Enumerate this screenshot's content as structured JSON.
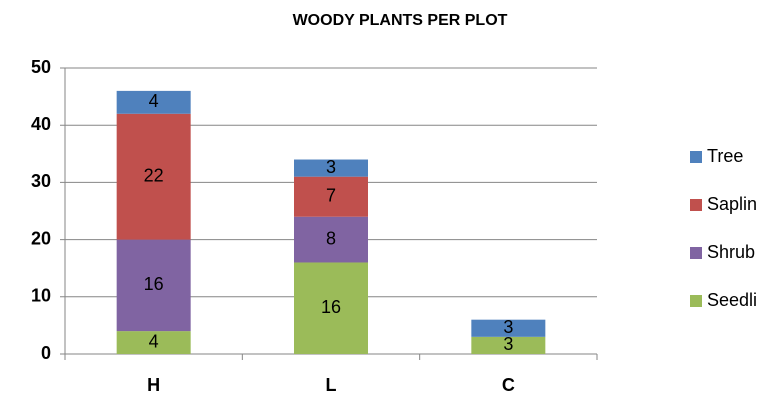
{
  "chart_data": {
    "type": "stacked_bar",
    "title": "WOODY PLANTS PER PLOT",
    "categories": [
      "H",
      "L",
      "C"
    ],
    "series": [
      {
        "name": "Seedling",
        "color": "#9bbb59",
        "values": [
          4,
          16,
          3
        ]
      },
      {
        "name": "Shrub",
        "color": "#8064a2",
        "values": [
          16,
          8,
          null
        ]
      },
      {
        "name": "Sapling",
        "color": "#c0504d",
        "values": [
          22,
          7,
          null
        ]
      },
      {
        "name": "Tree",
        "color": "#4f81bd",
        "values": [
          4,
          3,
          3
        ]
      }
    ],
    "ylim": [
      0,
      50
    ],
    "yticks": [
      0,
      10,
      20,
      30,
      40,
      50
    ],
    "grid": true,
    "legend": "right"
  }
}
